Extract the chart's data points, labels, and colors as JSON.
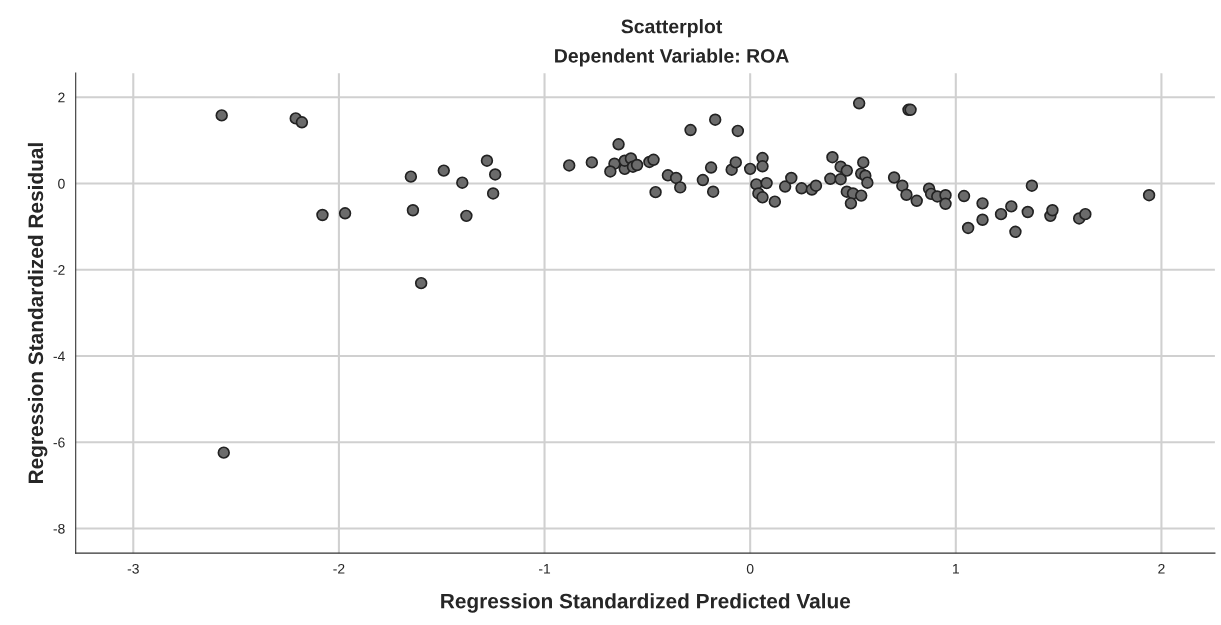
{
  "chart_data": {
    "type": "scatter",
    "title": "Scatterplot",
    "subtitle": "Dependent Variable: ROA",
    "xlabel": "Regression Standardized Predicted Value",
    "ylabel": "Regression Standardized Residual",
    "xlim": [
      -3.28,
      2.26
    ],
    "ylim": [
      -8.57,
      2.56
    ],
    "xticks": [
      -3,
      -2,
      -1,
      0,
      1,
      2
    ],
    "yticks": [
      -8,
      -6,
      -4,
      -2,
      0,
      2
    ],
    "grid": true,
    "marker": "circle",
    "legend": false,
    "series": [
      {
        "color": "#6b6b6b",
        "x": [
          -2.57,
          -2.21,
          -2.18,
          -1.28,
          -1.49,
          -1.65,
          -1.24,
          -1.4,
          -1.25,
          -2.08,
          -1.97,
          -1.64,
          -1.38,
          -1.6,
          -2.56,
          -0.88,
          -0.77,
          -0.64,
          -0.66,
          -0.68,
          -0.61,
          -0.61,
          -0.58,
          -0.57,
          -0.55,
          -0.49,
          -0.47,
          -0.46,
          -0.4,
          -0.36,
          -0.34,
          -0.29,
          -0.23,
          -0.19,
          -0.17,
          -0.18,
          -0.09,
          -0.07,
          -0.06,
          0.0,
          0.06,
          0.06,
          0.03,
          0.08,
          0.04,
          0.06,
          0.12,
          0.17,
          0.2,
          0.25,
          0.3,
          0.32,
          0.4,
          0.39,
          0.44,
          0.44,
          0.47,
          0.47,
          0.5,
          0.54,
          0.49,
          0.55,
          0.54,
          0.56,
          0.57,
          0.53,
          0.77,
          0.78,
          0.7,
          0.74,
          0.76,
          0.81,
          0.87,
          0.88,
          0.91,
          0.95,
          0.95,
          1.04,
          1.06,
          1.13,
          1.13,
          1.22,
          1.27,
          1.29,
          1.35,
          1.37,
          1.46,
          1.47,
          1.6,
          1.63,
          1.94
        ],
        "values": [
          1.58,
          1.51,
          1.42,
          0.53,
          0.3,
          0.16,
          0.21,
          0.02,
          -0.23,
          -0.73,
          -0.69,
          -0.62,
          -0.75,
          -2.31,
          -6.24,
          0.42,
          0.49,
          0.91,
          0.46,
          0.28,
          0.34,
          0.53,
          0.58,
          0.39,
          0.43,
          0.5,
          0.55,
          -0.2,
          0.19,
          0.13,
          -0.09,
          1.24,
          0.08,
          0.37,
          1.48,
          -0.19,
          0.32,
          0.49,
          1.22,
          0.34,
          0.59,
          0.4,
          -0.02,
          0.01,
          -0.23,
          -0.32,
          -0.42,
          -0.07,
          0.13,
          -0.11,
          -0.14,
          -0.05,
          0.61,
          0.11,
          0.1,
          0.39,
          0.3,
          -0.19,
          -0.23,
          -0.28,
          -0.46,
          0.49,
          0.23,
          0.18,
          0.02,
          1.86,
          1.71,
          1.71,
          0.14,
          -0.05,
          -0.26,
          -0.4,
          -0.12,
          -0.24,
          -0.3,
          -0.27,
          -0.47,
          -0.29,
          -1.03,
          -0.46,
          -0.84,
          -0.71,
          -0.53,
          -1.12,
          -0.66,
          -0.05,
          -0.75,
          -0.62,
          -0.81,
          -0.71,
          -0.27
        ]
      }
    ]
  }
}
